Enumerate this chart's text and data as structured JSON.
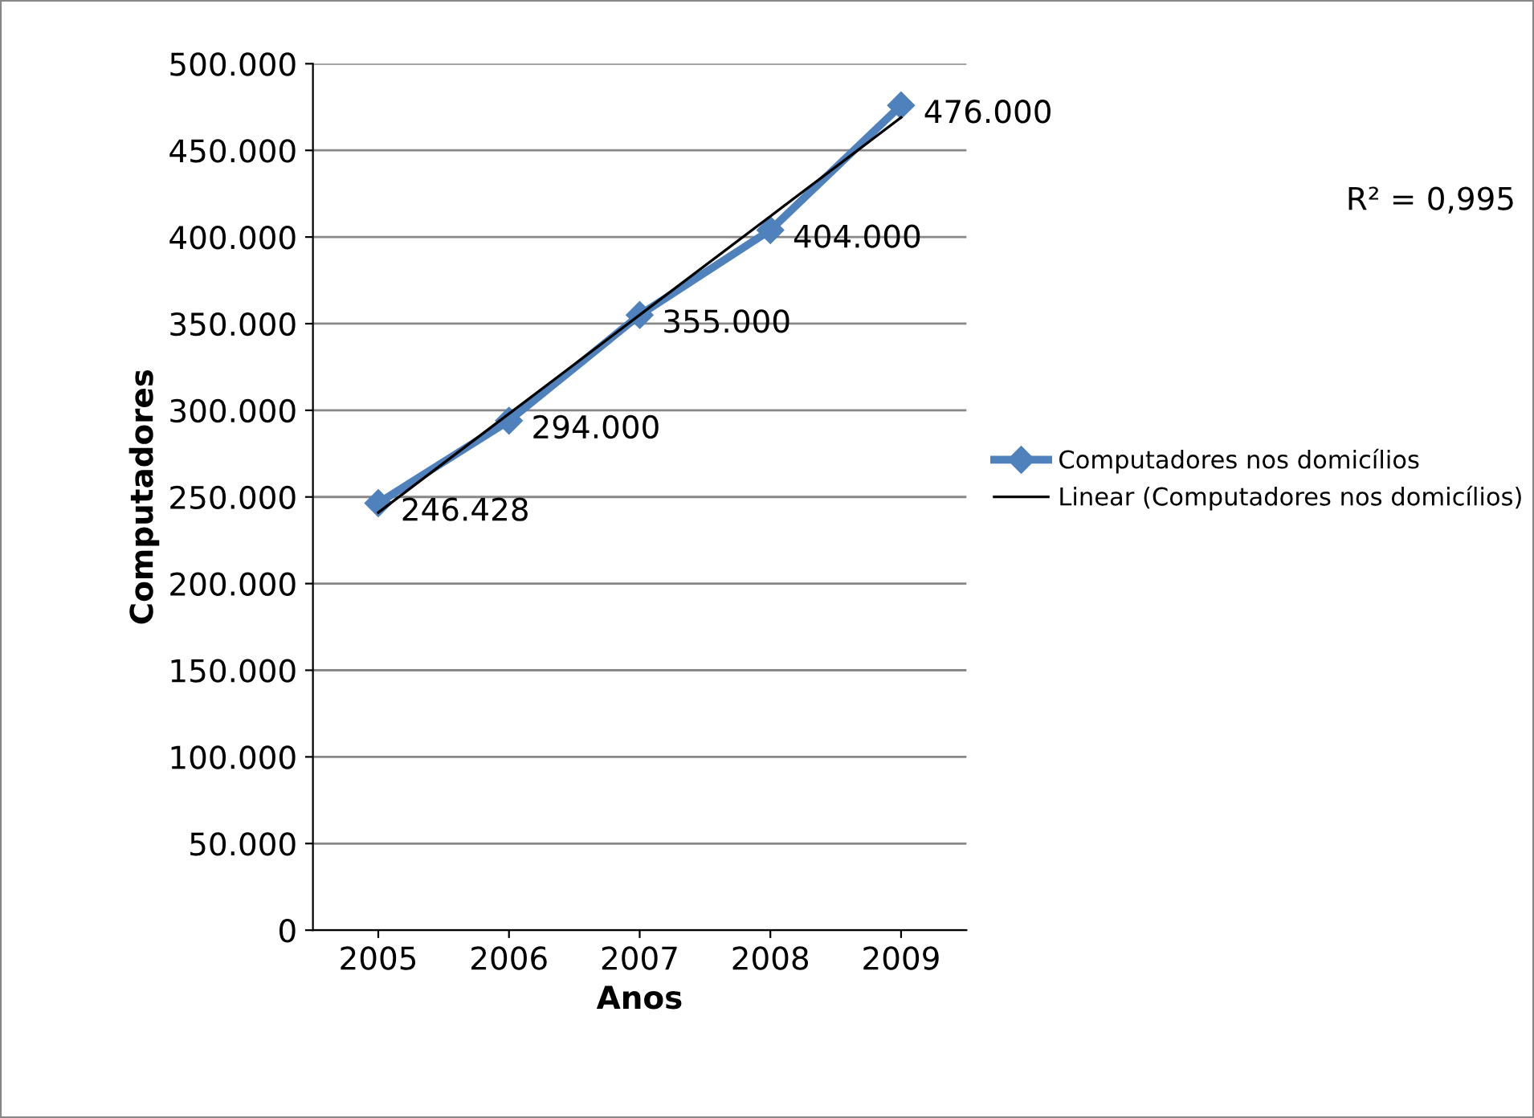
{
  "chart_data": {
    "type": "line",
    "xlabel": "Anos",
    "ylabel": "Computadores",
    "categories": [
      "2005",
      "2006",
      "2007",
      "2008",
      "2009"
    ],
    "series": [
      {
        "name": "Computadores nos domicílios",
        "color": "#4f81bd",
        "values": [
          246428,
          294000,
          355000,
          404000,
          476000
        ],
        "marker": "diamond",
        "value_labels": [
          "246.428",
          "294.000",
          "355.000",
          "404.000",
          "476.000"
        ]
      },
      {
        "name": "Linear (Computadores nos domicílios)",
        "color": "#000000",
        "values": [
          241000,
          298000,
          355000,
          412000,
          469000
        ],
        "marker": "none"
      }
    ],
    "ylim": [
      0,
      500000
    ],
    "yticks": [
      {
        "value": 0,
        "label": "0"
      },
      {
        "value": 50000,
        "label": "50.000"
      },
      {
        "value": 100000,
        "label": "100.000"
      },
      {
        "value": 150000,
        "label": "150.000"
      },
      {
        "value": 200000,
        "label": "200.000"
      },
      {
        "value": 250000,
        "label": "250.000"
      },
      {
        "value": 300000,
        "label": "300.000"
      },
      {
        "value": 350000,
        "label": "350.000"
      },
      {
        "value": 400000,
        "label": "400.000"
      },
      {
        "value": 450000,
        "label": "450.000"
      },
      {
        "value": 500000,
        "label": "500.000"
      }
    ],
    "grid": "y",
    "legend": "right",
    "line_style": "solid",
    "annotations": [
      "R² = 0,995"
    ]
  }
}
